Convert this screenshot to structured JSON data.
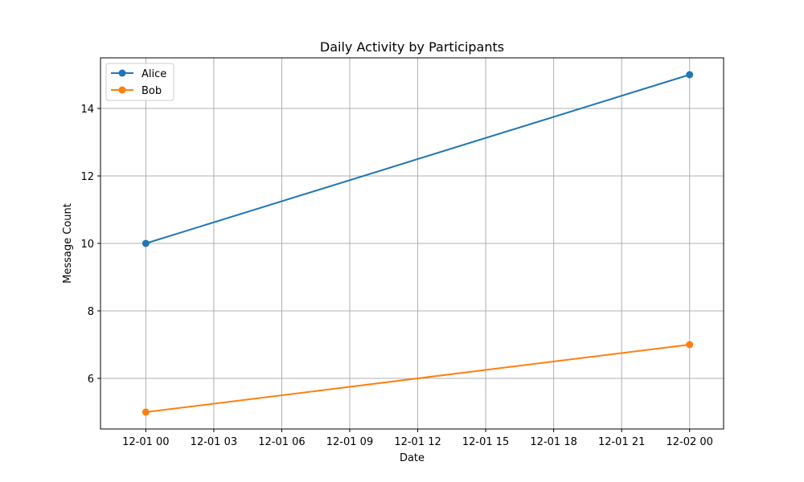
{
  "chart_data": {
    "type": "line",
    "title": "Daily Activity by Participants",
    "xlabel": "Date",
    "ylabel": "Message Count",
    "x_type": "datetime",
    "x": [
      "2023-12-01 00:00",
      "2023-12-02 00:00"
    ],
    "xlim": [
      "2023-11-30 22:00",
      "2023-12-02 01:30"
    ],
    "ylim": [
      4.5,
      15.5
    ],
    "x_ticks": [
      {
        "value": "2023-12-01 00:00",
        "label": "12-01 00"
      },
      {
        "value": "2023-12-01 03:00",
        "label": "12-01 03"
      },
      {
        "value": "2023-12-01 06:00",
        "label": "12-01 06"
      },
      {
        "value": "2023-12-01 09:00",
        "label": "12-01 09"
      },
      {
        "value": "2023-12-01 12:00",
        "label": "12-01 12"
      },
      {
        "value": "2023-12-01 15:00",
        "label": "12-01 15"
      },
      {
        "value": "2023-12-01 18:00",
        "label": "12-01 18"
      },
      {
        "value": "2023-12-01 21:00",
        "label": "12-01 21"
      },
      {
        "value": "2023-12-02 00:00",
        "label": "12-02 00"
      }
    ],
    "y_ticks": [
      6,
      8,
      10,
      12,
      14
    ],
    "grid": true,
    "legend": "top-left",
    "series": [
      {
        "name": "Alice",
        "values": [
          10,
          15
        ],
        "color": "#1f77b4",
        "marker": "circle"
      },
      {
        "name": "Bob",
        "values": [
          5,
          7
        ],
        "color": "#ff7f0e",
        "marker": "circle"
      }
    ]
  }
}
